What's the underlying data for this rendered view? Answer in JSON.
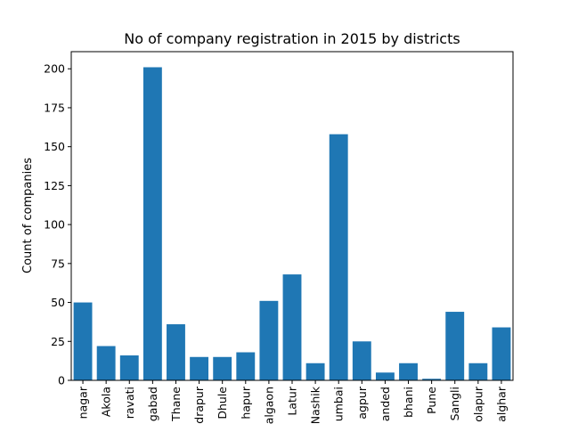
{
  "chart_data": {
    "type": "bar",
    "title": "No of company registration in 2015 by districts",
    "xlabel": "",
    "ylabel": "Count of companies",
    "categories": [
      "nagar",
      "Akola",
      "ravati",
      "gabad",
      "Thane",
      "drapur",
      "Dhule",
      "hapur",
      "algaon",
      "Latur",
      "Nashik",
      "umbai",
      "agpur",
      "anded",
      "bhani",
      "Pune",
      "Sangli",
      "olapur",
      "alghar"
    ],
    "values": [
      50,
      22,
      16,
      201,
      36,
      15,
      15,
      18,
      51,
      68,
      11,
      158,
      25,
      5,
      11,
      1,
      44,
      11,
      34
    ],
    "ylim": [
      0,
      211
    ],
    "yticks": [
      0,
      25,
      50,
      75,
      100,
      125,
      150,
      175,
      200
    ],
    "grid": false,
    "legend": "none",
    "bar_color": "#1f77b4"
  }
}
